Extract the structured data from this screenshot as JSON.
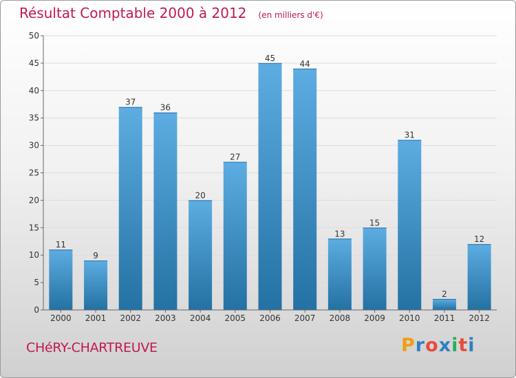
{
  "header": {
    "title": "Résultat Comptable 2000 à 2012",
    "subtitle": "(en milliers d'€)"
  },
  "footer": {
    "commune": "CHéRY-CHARTREUVE",
    "logo_letters": [
      "P",
      "r",
      "o",
      "x",
      "i",
      "t",
      "i"
    ],
    "logo_colors": [
      "#f39c12",
      "#2e7fc1",
      "#e74c3c",
      "#2e7fc1",
      "#27ae60",
      "#e74c3c",
      "#2e7fc1"
    ]
  },
  "colors": {
    "title": "#c0194f",
    "bar_light": "#5dade2",
    "bar_dark": "#2471a3"
  },
  "chart_data": {
    "type": "bar",
    "title": "Résultat Comptable 2000 à 2012",
    "xlabel": "",
    "ylabel": "",
    "categories": [
      "2000",
      "2001",
      "2002",
      "2003",
      "2004",
      "2005",
      "2006",
      "2007",
      "2008",
      "2009",
      "2010",
      "2011",
      "2012"
    ],
    "values": [
      11,
      9,
      37,
      36,
      20,
      27,
      45,
      44,
      13,
      15,
      31,
      2,
      12
    ],
    "ylim": [
      0,
      50
    ],
    "yticks": [
      0,
      5,
      10,
      15,
      20,
      25,
      30,
      35,
      40,
      45,
      50
    ],
    "grid": true
  }
}
